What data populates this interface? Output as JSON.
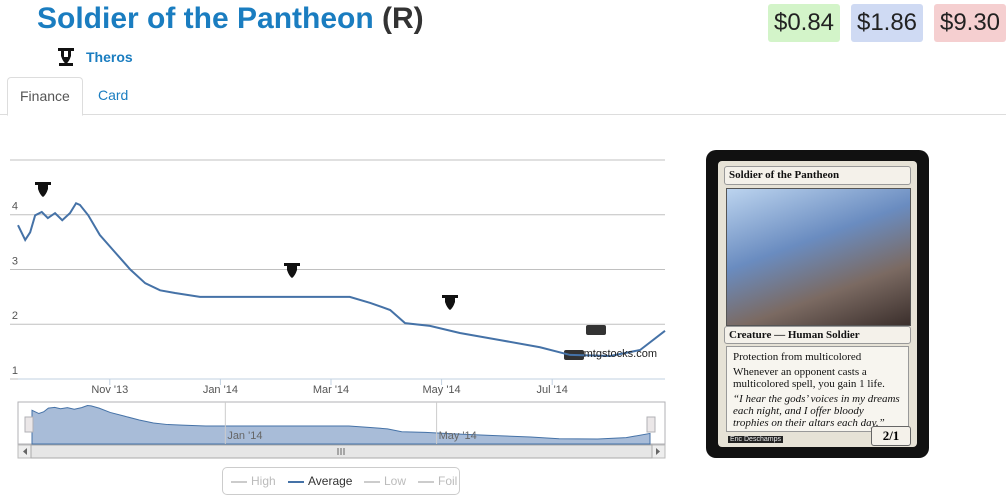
{
  "header": {
    "title": "Soldier of the Pantheon",
    "rarity": "(R)",
    "set": "Theros",
    "prices": [
      "$0.84",
      "$1.86",
      "$9.30"
    ]
  },
  "tabs": [
    "Finance",
    "Card"
  ],
  "chart_data": {
    "type": "line",
    "x": [
      0.34,
      0.47,
      0.56,
      0.65,
      0.77,
      0.88,
      1.01,
      1.14,
      1.28,
      1.39,
      1.46,
      1.61,
      1.82,
      2.09,
      2.37,
      2.64,
      2.91,
      3.18,
      3.63,
      4.54,
      5.44,
      6.34,
      6.71,
      7.07,
      7.34,
      7.79,
      8.33,
      9.06,
      9.78,
      10.32,
      11.05,
      11.59,
      12.04
    ],
    "series": [
      {
        "name": "High",
        "visible": false
      },
      {
        "name": "Average",
        "visible": true,
        "color": "#4572a7",
        "values": [
          3.81,
          3.54,
          3.68,
          3.99,
          4.05,
          3.94,
          4.03,
          3.9,
          4.03,
          4.21,
          4.18,
          3.99,
          3.63,
          3.32,
          3.0,
          2.75,
          2.62,
          2.57,
          2.5,
          2.5,
          2.5,
          2.5,
          2.39,
          2.26,
          2.02,
          1.97,
          1.84,
          1.71,
          1.58,
          1.44,
          1.42,
          1.53,
          1.88
        ]
      },
      {
        "name": "Low",
        "visible": false
      },
      {
        "name": "Foil",
        "visible": false
      }
    ],
    "xlim": [
      0.34,
      12.04
    ],
    "ylim": [
      1,
      5
    ],
    "xticks": [
      {
        "value": 2,
        "label": "Nov '13"
      },
      {
        "value": 4,
        "label": "Jan '14"
      },
      {
        "value": 6,
        "label": "Mar '14"
      },
      {
        "value": 8,
        "label": "May '14"
      },
      {
        "value": 10,
        "label": "Jul '14"
      }
    ],
    "yticks": [
      1,
      2,
      3,
      4
    ],
    "navigator_ticks": [
      {
        "value": 4,
        "label": "Jan '14"
      },
      {
        "value": 8,
        "label": "May '14"
      }
    ],
    "grid": true,
    "watermark": "mtgstocks.com"
  },
  "card": {
    "name": "Soldier of the Pantheon",
    "type_line": "Creature — Human Soldier",
    "rules": [
      "Protection from multicolored",
      "Whenever an opponent casts a multicolored spell, you gain 1 life."
    ],
    "flavor": "“I hear the gods’ voices in my dreams each night, and I offer bloody trophies on their altars each day.”",
    "artist": "Eric Deschamps",
    "pt": "2/1"
  }
}
